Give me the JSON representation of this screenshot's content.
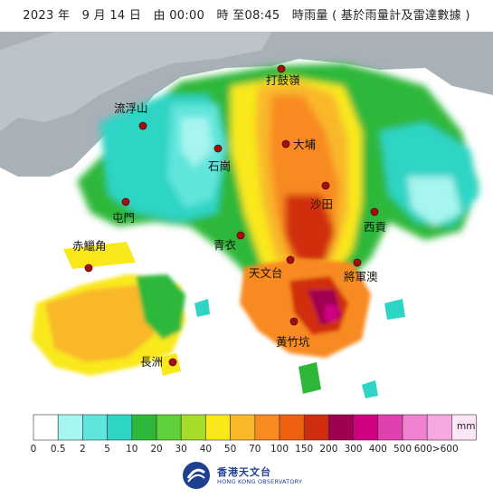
{
  "title": "2023 年　9 月 14 日　由 00:00　時 至08:45　時雨量 ( 基於雨量計及雷達數據 )",
  "stations": [
    {
      "name": "打鼓嶺",
      "id": "ta-kwu-ling"
    },
    {
      "name": "流浮山",
      "id": "lau-fau-shan"
    },
    {
      "name": "大埔",
      "id": "tai-po"
    },
    {
      "name": "石崗",
      "id": "shek-kong"
    },
    {
      "name": "沙田",
      "id": "sha-tin"
    },
    {
      "name": "屯門",
      "id": "tuen-mun"
    },
    {
      "name": "西貢",
      "id": "sai-kung"
    },
    {
      "name": "赤鱲角",
      "id": "chek-lap-kok"
    },
    {
      "name": "青衣",
      "id": "tsing-yi"
    },
    {
      "name": "天文台",
      "id": "observatory"
    },
    {
      "name": "將軍澳",
      "id": "tseung-kwan-o"
    },
    {
      "name": "黃竹坑",
      "id": "wong-chuk-hang"
    },
    {
      "name": "長洲",
      "id": "cheung-chau"
    }
  ],
  "legend": {
    "unit": "mm",
    "colors": [
      "#ffffff",
      "#a6f5ef",
      "#60e5dc",
      "#2ed4c4",
      "#2db83a",
      "#5fd03a",
      "#a6dd2a",
      "#f9e81a",
      "#f9b82a",
      "#f88a20",
      "#ee6010",
      "#d02d10",
      "#a00050",
      "#d00080",
      "#e040b0",
      "#f080d0",
      "#f8a8e0",
      "#fde6f7"
    ],
    "labels": [
      "0",
      "0.5",
      "2",
      "5",
      "10",
      "20",
      "30",
      "40",
      "50",
      "70",
      "100",
      "150",
      "200",
      "300",
      "400",
      "500",
      "600>600"
    ]
  },
  "logo": {
    "name_cn": "香港天文台",
    "name_en": "HONG KONG OBSERVATORY"
  }
}
